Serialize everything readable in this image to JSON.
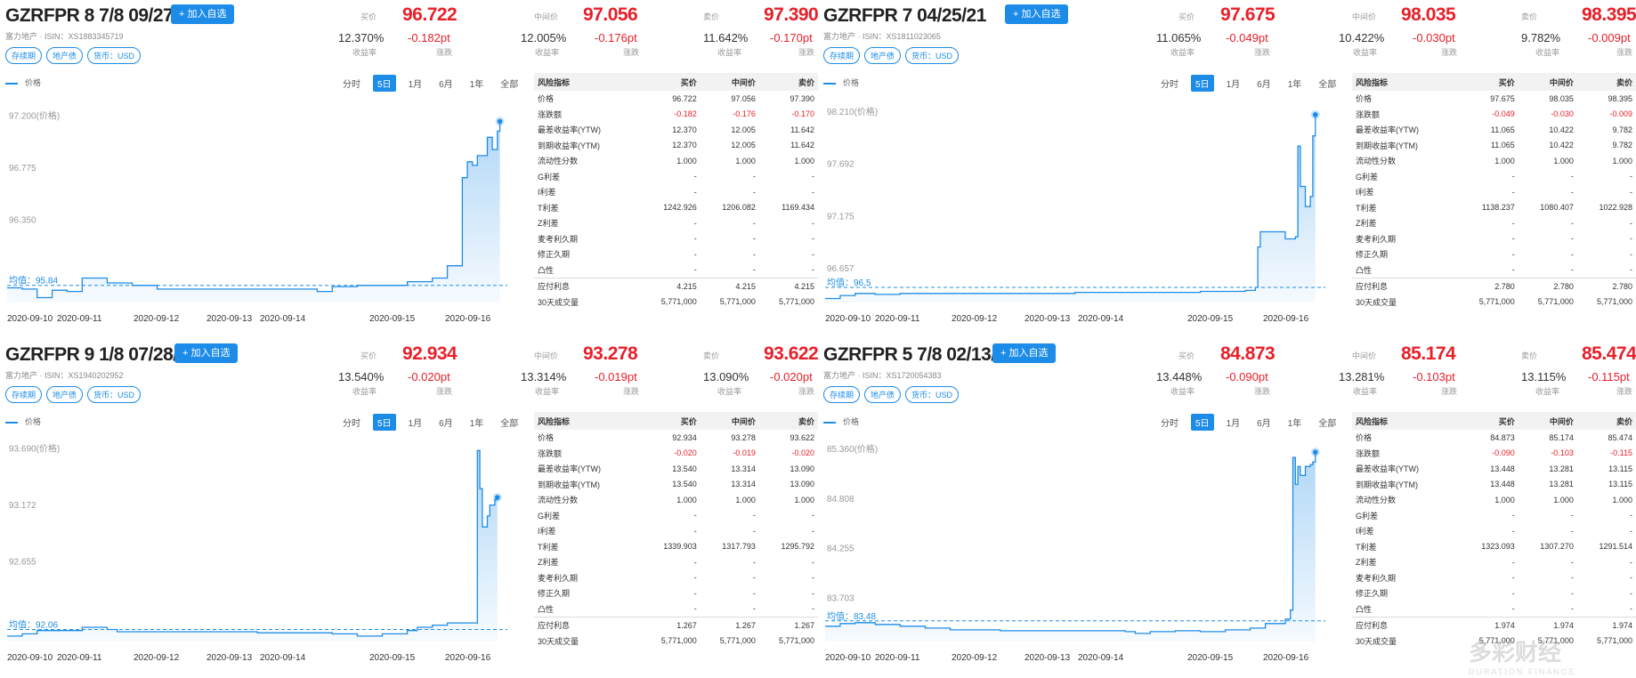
{
  "common": {
    "add_label": "+ 加入自选",
    "tags": [
      "存续期",
      "地产债",
      "货币：USD"
    ],
    "bid_label": "买价",
    "mid_label": "中间价",
    "ask_label": "卖价",
    "yield_label": "收益率",
    "change_label": "涨跌",
    "legend_label": "价格",
    "ranges": [
      "分时",
      "5日",
      "1月",
      "6月",
      "1年",
      "全部"
    ],
    "selected_range": "5日",
    "table_headers": [
      "风险指标",
      "买价",
      "中间价",
      "卖价"
    ],
    "x_labels": [
      "2020-09-10",
      "2020-09-11",
      "2020-09-12",
      "2020-09-13",
      "2020-09-14",
      "2020-09-15",
      "2020-09-16"
    ],
    "line_color": "#1d8ce8",
    "price_color": "#e8202a"
  },
  "panels": [
    {
      "title": "GZRFPR 8 7/8 09/27/21",
      "subtitle": "富力地产 · ISIN：XS1883345719",
      "bid": {
        "price": "96.722",
        "yield": "12.370%",
        "change": "-0.182pt"
      },
      "mid": {
        "price": "97.056",
        "yield": "12.005%",
        "change": "-0.176pt"
      },
      "ask": {
        "price": "97.390",
        "yield": "11.642%",
        "change": "-0.170pt"
      },
      "chart_data": {
        "type": "line",
        "y_tick_labels": [
          "97.200(价格)",
          "96.775",
          "96.350"
        ],
        "y_ticks": [
          97.2,
          96.775,
          96.35
        ],
        "ylim": [
          95.7,
          97.35
        ],
        "avg_label": "均值：95.84",
        "avg": 95.84,
        "x": [
          0,
          3,
          6,
          9,
          12,
          15,
          20,
          25,
          30,
          35,
          40,
          45,
          50,
          55,
          60,
          62,
          65,
          70,
          75,
          80,
          85,
          88,
          90,
          91,
          92,
          93,
          94,
          95,
          96,
          97,
          98,
          98.5
        ],
        "y": [
          95.82,
          95.81,
          95.74,
          95.8,
          95.79,
          95.9,
          95.86,
          95.84,
          95.81,
          95.81,
          95.81,
          95.81,
          95.81,
          95.81,
          95.81,
          95.79,
          95.83,
          95.84,
          95.84,
          95.87,
          95.9,
          96.0,
          96.0,
          96.72,
          96.85,
          96.82,
          96.9,
          96.9,
          97.05,
          96.95,
          97.1,
          97.18
        ]
      },
      "rows": [
        [
          "价格",
          "96.722",
          "97.056",
          "97.390"
        ],
        [
          "涨跌额",
          "-0.182",
          "-0.176",
          "-0.170"
        ],
        [
          "最差收益率(YTW)",
          "12.370",
          "12.005",
          "11.642"
        ],
        [
          "到期收益率(YTM)",
          "12.370",
          "12.005",
          "11.642"
        ],
        [
          "流动性分数",
          "1.000",
          "1.000",
          "1.000"
        ],
        [
          "G利差",
          "-",
          "-",
          "-"
        ],
        [
          "I利差",
          "-",
          "-",
          "-"
        ],
        [
          "T利差",
          "1242.926",
          "1206.082",
          "1169.434"
        ],
        [
          "Z利差",
          "-",
          "-",
          "-"
        ],
        [
          "麦考利久期",
          "-",
          "-",
          "-"
        ],
        [
          "修正久期",
          "-",
          "-",
          "-"
        ],
        [
          "凸性",
          "-",
          "-",
          "-"
        ],
        [
          "应付利息",
          "4.215",
          "4.215",
          "4.215"
        ],
        [
          "30天成交量",
          "5,771,000",
          "5,771,000",
          "5,771,000"
        ]
      ]
    },
    {
      "title": "GZRFPR 7 04/25/21",
      "subtitle": "富力地产 · ISIN：XS1811023065",
      "bid": {
        "price": "97.675",
        "yield": "11.065%",
        "change": "-0.049pt"
      },
      "mid": {
        "price": "98.035",
        "yield": "10.422%",
        "change": "-0.030pt"
      },
      "ask": {
        "price": "98.395",
        "yield": "9.782%",
        "change": "-0.009pt"
      },
      "chart_data": {
        "type": "line",
        "y_tick_labels": [
          "98.210(价格)",
          "97.692",
          "97.175",
          "96.657"
        ],
        "y_ticks": [
          98.21,
          97.692,
          97.175,
          96.657
        ],
        "ylim": [
          96.35,
          98.35
        ],
        "avg_label": "均值：96.5",
        "avg": 96.5,
        "x": [
          0,
          3,
          6,
          10,
          15,
          20,
          25,
          30,
          35,
          40,
          45,
          50,
          55,
          60,
          65,
          70,
          75,
          80,
          84,
          86,
          86.5,
          87,
          89,
          90,
          92,
          94,
          94.5,
          95,
          96,
          97,
          97.5,
          98
        ],
        "y": [
          96.39,
          96.42,
          96.44,
          96.43,
          96.44,
          96.44,
          96.44,
          96.44,
          96.44,
          96.44,
          96.44,
          96.45,
          96.45,
          96.45,
          96.45,
          96.45,
          96.46,
          96.46,
          96.47,
          96.5,
          96.9,
          97.05,
          97.05,
          97.05,
          96.98,
          97.0,
          97.9,
          97.5,
          97.3,
          97.4,
          98.0,
          98.21
        ]
      },
      "rows": [
        [
          "价格",
          "97.675",
          "98.035",
          "98.395"
        ],
        [
          "涨跌额",
          "-0.049",
          "-0.030",
          "-0.009"
        ],
        [
          "最差收益率(YTW)",
          "11.065",
          "10.422",
          "9.782"
        ],
        [
          "到期收益率(YTM)",
          "11.065",
          "10.422",
          "9.782"
        ],
        [
          "流动性分数",
          "1.000",
          "1.000",
          "1.000"
        ],
        [
          "G利差",
          "-",
          "-",
          "-"
        ],
        [
          "I利差",
          "-",
          "-",
          "-"
        ],
        [
          "T利差",
          "1138.237",
          "1080.407",
          "1022.928"
        ],
        [
          "Z利差",
          "-",
          "-",
          "-"
        ],
        [
          "麦考利久期",
          "-",
          "-",
          "-"
        ],
        [
          "修正久期",
          "-",
          "-",
          "-"
        ],
        [
          "凸性",
          "-",
          "-",
          "-"
        ],
        [
          "应付利息",
          "2.780",
          "2.780",
          "2.780"
        ],
        [
          "30天成交量",
          "5,771,000",
          "5,771,000",
          "5,771,000"
        ]
      ]
    },
    {
      "title": "GZRFPR 9 1/8 07/28/22",
      "subtitle": "富力地产 · ISIN：XS1940202952",
      "bid": {
        "price": "92.934",
        "yield": "13.540%",
        "change": "-0.020pt"
      },
      "mid": {
        "price": "93.278",
        "yield": "13.314%",
        "change": "-0.019pt"
      },
      "ask": {
        "price": "93.622",
        "yield": "13.090%",
        "change": "-0.020pt"
      },
      "chart_data": {
        "type": "line",
        "y_tick_labels": [
          "93.690(价格)",
          "93.172",
          "92.655"
        ],
        "y_ticks": [
          93.69,
          93.172,
          92.655
        ],
        "ylim": [
          91.95,
          93.8
        ],
        "avg_label": "均值：92.06",
        "avg": 92.06,
        "x": [
          0,
          3,
          6,
          10,
          15,
          20,
          22,
          25,
          30,
          35,
          40,
          45,
          50,
          55,
          60,
          65,
          70,
          75,
          80,
          82,
          85,
          88,
          90,
          93,
          94,
          94.5,
          95,
          96,
          96.5,
          97,
          97.5,
          98
        ],
        "y": [
          92.0,
          92.02,
          92.05,
          92.05,
          92.08,
          92.06,
          92.04,
          92.04,
          92.04,
          92.04,
          92.04,
          92.04,
          92.03,
          92.03,
          92.03,
          92.02,
          92.0,
          92.02,
          92.05,
          92.08,
          92.1,
          92.12,
          92.12,
          92.12,
          93.7,
          93.35,
          93.0,
          93.1,
          93.2,
          93.2,
          93.25,
          93.27
        ]
      },
      "rows": [
        [
          "价格",
          "92.934",
          "93.278",
          "93.622"
        ],
        [
          "涨跌额",
          "-0.020",
          "-0.019",
          "-0.020"
        ],
        [
          "最差收益率(YTW)",
          "13.540",
          "13.314",
          "13.090"
        ],
        [
          "到期收益率(YTM)",
          "13.540",
          "13.314",
          "13.090"
        ],
        [
          "流动性分数",
          "1.000",
          "1.000",
          "1.000"
        ],
        [
          "G利差",
          "-",
          "-",
          "-"
        ],
        [
          "I利差",
          "-",
          "-",
          "-"
        ],
        [
          "T利差",
          "1339.903",
          "1317.793",
          "1295.792"
        ],
        [
          "Z利差",
          "-",
          "-",
          "-"
        ],
        [
          "麦考利久期",
          "-",
          "-",
          "-"
        ],
        [
          "修正久期",
          "-",
          "-",
          "-"
        ],
        [
          "凸性",
          "-",
          "-",
          "-"
        ],
        [
          "应付利息",
          "1.267",
          "1.267",
          "1.267"
        ],
        [
          "30天成交量",
          "5,771,000",
          "5,771,000",
          "5,771,000"
        ]
      ]
    },
    {
      "title": "GZRFPR 5 7/8 02/13/23",
      "subtitle": "富力地产 · ISIN：XS1720054383",
      "bid": {
        "price": "84.873",
        "yield": "13.448%",
        "change": "-0.090pt"
      },
      "mid": {
        "price": "85.174",
        "yield": "13.281%",
        "change": "-0.103pt"
      },
      "ask": {
        "price": "85.474",
        "yield": "13.115%",
        "change": "-0.115pt"
      },
      "chart_data": {
        "type": "line",
        "y_tick_labels": [
          "85.360(价格)",
          "84.808",
          "84.255",
          "83.703"
        ],
        "y_ticks": [
          85.36,
          84.808,
          84.255,
          83.703
        ],
        "ylim": [
          83.25,
          85.5
        ],
        "avg_label": "均值：83.48",
        "avg": 83.48,
        "x": [
          0,
          3,
          6,
          10,
          15,
          20,
          25,
          30,
          35,
          40,
          45,
          50,
          55,
          60,
          62,
          65,
          70,
          75,
          80,
          85,
          88,
          90,
          92,
          93,
          93.5,
          94,
          94.5,
          95,
          96,
          97,
          97.5,
          98
        ],
        "y": [
          83.42,
          83.45,
          83.46,
          83.44,
          83.42,
          83.4,
          83.38,
          83.38,
          83.37,
          83.37,
          83.37,
          83.37,
          83.37,
          83.36,
          83.34,
          83.36,
          83.37,
          83.36,
          83.38,
          83.4,
          83.45,
          83.45,
          83.5,
          83.6,
          85.3,
          85.0,
          85.2,
          85.1,
          85.2,
          85.22,
          85.25,
          85.36
        ]
      },
      "rows": [
        [
          "价格",
          "84.873",
          "85.174",
          "85.474"
        ],
        [
          "涨跌额",
          "-0.090",
          "-0.103",
          "-0.115"
        ],
        [
          "最差收益率(YTW)",
          "13.448",
          "13.281",
          "13.115"
        ],
        [
          "到期收益率(YTM)",
          "13.448",
          "13.281",
          "13.115"
        ],
        [
          "流动性分数",
          "1.000",
          "1.000",
          "1.000"
        ],
        [
          "G利差",
          "-",
          "-",
          "-"
        ],
        [
          "I利差",
          "-",
          "-",
          "-"
        ],
        [
          "T利差",
          "1323.093",
          "1307.270",
          "1291.514"
        ],
        [
          "Z利差",
          "-",
          "-",
          "-"
        ],
        [
          "麦考利久期",
          "-",
          "-",
          "-"
        ],
        [
          "修正久期",
          "-",
          "-",
          "-"
        ],
        [
          "凸性",
          "-",
          "-",
          "-"
        ],
        [
          "应付利息",
          "1.974",
          "1.974",
          "1.974"
        ],
        [
          "30天成交量",
          "5,771,000",
          "5,771,000",
          "5,771,000"
        ]
      ]
    }
  ],
  "watermark": {
    "brand": "多彩财经",
    "sub": "DURATION FINANCE"
  }
}
